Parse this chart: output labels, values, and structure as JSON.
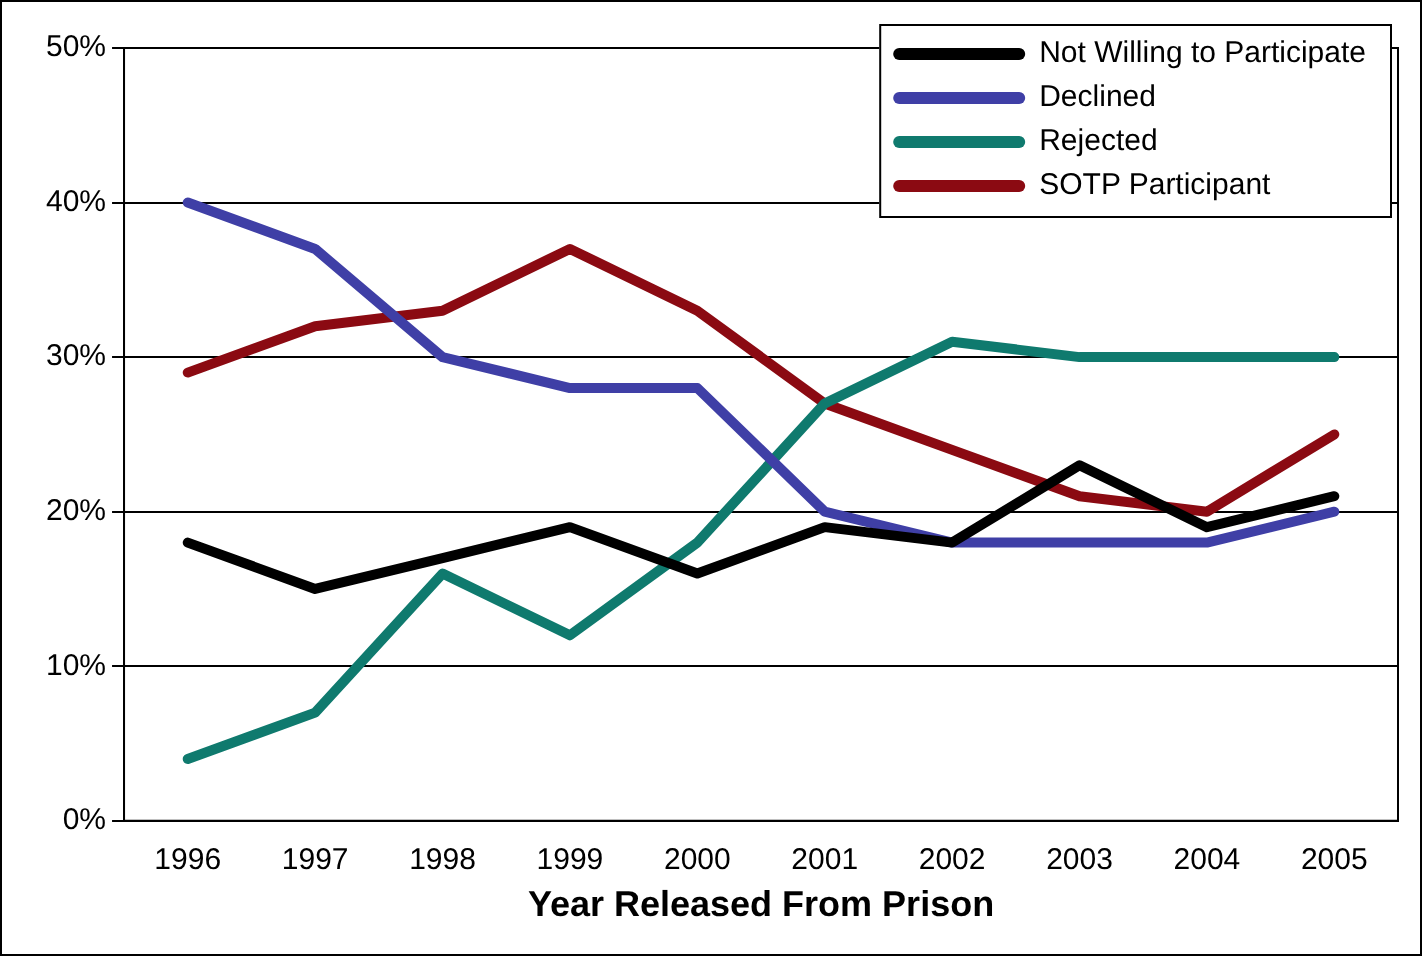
{
  "chart_data": {
    "type": "line",
    "xlabel": "Year Released From Prison",
    "categories": [
      "1996",
      "1997",
      "1998",
      "1999",
      "2000",
      "2001",
      "2002",
      "2003",
      "2004",
      "2005"
    ],
    "series": [
      {
        "name": "Not Willing to Participate",
        "color": "#000000",
        "values": [
          18,
          15,
          17,
          19,
          16,
          19,
          18,
          23,
          19,
          21
        ]
      },
      {
        "name": "Declined",
        "color": "#3f3fa6",
        "values": [
          40,
          37,
          30,
          28,
          28,
          20,
          18,
          18,
          18,
          20
        ]
      },
      {
        "name": "Rejected",
        "color": "#0f7a6e",
        "values": [
          4,
          7,
          16,
          12,
          18,
          27,
          31,
          30,
          30,
          30
        ]
      },
      {
        "name": "SOTP Participant",
        "color": "#8b0a12",
        "values": [
          29,
          32,
          33,
          37,
          33,
          27,
          24,
          21,
          20,
          25
        ]
      }
    ],
    "ylim": [
      0,
      50
    ],
    "yticks": [
      {
        "value": 0,
        "label": "0%"
      },
      {
        "value": 10,
        "label": "10%"
      },
      {
        "value": 20,
        "label": "20%"
      },
      {
        "value": 30,
        "label": "30%"
      },
      {
        "value": 40,
        "label": "40%"
      },
      {
        "value": 50,
        "label": "50%"
      }
    ],
    "grid": "y",
    "legend": "top right",
    "marker": "none",
    "line_style": "solid"
  }
}
